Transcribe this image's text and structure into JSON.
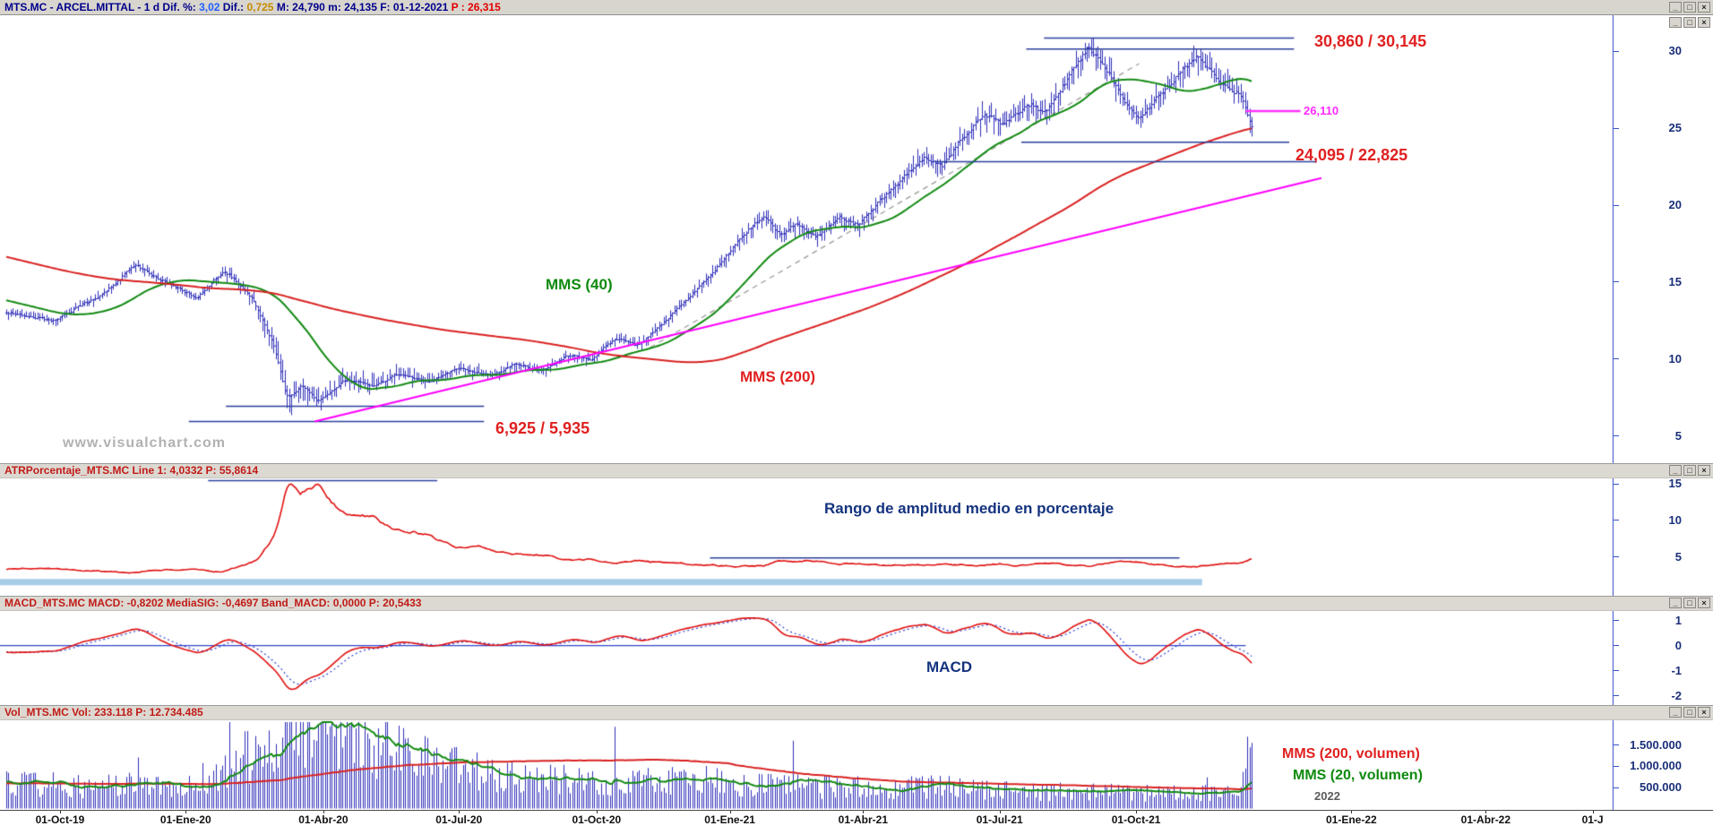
{
  "titlebar": {
    "segments": [
      {
        "text": "MTS.MC - ARCEL.MITTAL -  1 d  Dif. %: ",
        "color": "#00008b"
      },
      {
        "text": "3,02",
        "color": "#1e5eff"
      },
      {
        "text": "  Dif.: ",
        "color": "#00008b"
      },
      {
        "text": "0,725",
        "color": "#c78a00"
      },
      {
        "text": "  M: 24,790  m: 24,135  F: 01-12-2021  ",
        "color": "#00008b"
      },
      {
        "text": "P : 26,315",
        "color": "#e00000"
      }
    ],
    "window_controls": [
      {
        "name": "minimize",
        "glyph": "_"
      },
      {
        "name": "maximize",
        "glyph": "□"
      },
      {
        "name": "close",
        "glyph": "×"
      }
    ]
  },
  "chart_data": [
    {
      "type": "candlestick-ohlc",
      "symbol": "MTS.MC",
      "period": "1 d",
      "y_ticks": [
        30,
        25,
        20,
        15,
        10,
        5
      ],
      "y_range": [
        3.2,
        32.4
      ],
      "bar_color": "#2e2eb8",
      "series": {
        "bars": 560,
        "price_keypoints": [
          [
            0,
            13.0
          ],
          [
            0.036,
            12.5
          ],
          [
            0.077,
            14.3
          ],
          [
            0.102,
            16.1
          ],
          [
            0.126,
            15.0
          ],
          [
            0.152,
            14.0
          ],
          [
            0.174,
            15.8
          ],
          [
            0.196,
            13.9
          ],
          [
            0.214,
            10.8
          ],
          [
            0.224,
            7.3
          ],
          [
            0.236,
            8.3
          ],
          [
            0.249,
            7.2
          ],
          [
            0.271,
            8.7
          ],
          [
            0.293,
            8.2
          ],
          [
            0.312,
            9.0
          ],
          [
            0.339,
            8.5
          ],
          [
            0.36,
            9.4
          ],
          [
            0.388,
            8.9
          ],
          [
            0.407,
            9.7
          ],
          [
            0.429,
            9.2
          ],
          [
            0.449,
            10.3
          ],
          [
            0.47,
            9.9
          ],
          [
            0.479,
            10.9
          ],
          [
            0.492,
            11.4
          ],
          [
            0.505,
            10.8
          ],
          [
            0.525,
            12.3
          ],
          [
            0.545,
            13.9
          ],
          [
            0.566,
            15.7
          ],
          [
            0.579,
            17.0
          ],
          [
            0.593,
            18.3
          ],
          [
            0.607,
            19.4
          ],
          [
            0.62,
            18.0
          ],
          [
            0.634,
            18.9
          ],
          [
            0.648,
            17.9
          ],
          [
            0.668,
            19.3
          ],
          [
            0.682,
            18.7
          ],
          [
            0.696,
            19.9
          ],
          [
            0.716,
            21.6
          ],
          [
            0.737,
            23.1
          ],
          [
            0.751,
            22.5
          ],
          [
            0.764,
            24.3
          ],
          [
            0.785,
            25.9
          ],
          [
            0.798,
            25.1
          ],
          [
            0.819,
            26.7
          ],
          [
            0.833,
            25.9
          ],
          [
            0.853,
            28.6
          ],
          [
            0.867,
            30.3
          ],
          [
            0.88,
            29.1
          ],
          [
            0.894,
            27.0
          ],
          [
            0.908,
            25.7
          ],
          [
            0.921,
            26.9
          ],
          [
            0.942,
            28.7
          ],
          [
            0.956,
            29.8
          ],
          [
            0.969,
            28.3
          ],
          [
            0.983,
            27.1
          ],
          [
            0.99,
            27.4
          ],
          [
            1,
            24.6
          ]
        ],
        "atr_pct_keypoints": [
          [
            0,
            3.4
          ],
          [
            0.1,
            3.1
          ],
          [
            0.17,
            3.3
          ],
          [
            0.2,
            6
          ],
          [
            0.225,
            17.0
          ],
          [
            0.24,
            14
          ],
          [
            0.26,
            10.5
          ],
          [
            0.285,
            9.2
          ],
          [
            0.31,
            8.2
          ],
          [
            0.345,
            6.6
          ],
          [
            0.4,
            5.3
          ],
          [
            0.47,
            4.6
          ],
          [
            0.55,
            4.3
          ],
          [
            0.63,
            4.4
          ],
          [
            0.7,
            4.2
          ],
          [
            0.78,
            4.1
          ],
          [
            0.86,
            4.3
          ],
          [
            0.93,
            3.9
          ],
          [
            0.975,
            4.1
          ],
          [
            1,
            5.2
          ]
        ]
      },
      "overlays": [
        {
          "name": "MMS (40)",
          "type": "sma",
          "window": 40,
          "color": "#128a12"
        },
        {
          "name": "MMS (200)",
          "type": "sma",
          "window": 200,
          "color": "#d92121"
        }
      ],
      "lines": {
        "resistance": [
          {
            "price": 30.86,
            "x": [
              0.647,
              0.802
            ]
          },
          {
            "price": 30.145,
            "x": [
              0.636,
              0.802
            ]
          }
        ],
        "support": [
          {
            "price": 24.095,
            "x": [
              0.633,
              0.799
            ]
          },
          {
            "price": 22.825,
            "x": [
              0.579,
              0.816
            ]
          }
        ],
        "lows": [
          {
            "price": 6.925,
            "x": [
              0.14,
              0.3
            ]
          },
          {
            "price": 5.935,
            "x": [
              0.117,
              0.3
            ]
          }
        ],
        "trend_magenta": {
          "from": [
            0.195,
            5.94
          ],
          "to": [
            0.819,
            21.76
          ],
          "color": "#ff00ff"
        },
        "trend_dashed": {
          "from": [
            0.403,
            10.75
          ],
          "to": [
            0.706,
            29.2
          ],
          "color": "#9a9a9a"
        },
        "price_tag_line": {
          "price": 26.11,
          "x": [
            0.772,
            0.806
          ],
          "color": "#ff33ff"
        }
      },
      "labels": {
        "resistance": "30,860 / 30,145",
        "price_tag": "26,110",
        "support": "24,095 / 22,825",
        "low": "6,925 / 5,935",
        "mms40": "MMS (40)",
        "mms200": "MMS (200)",
        "watermark": "www.visualchart.com"
      }
    },
    {
      "type": "line",
      "header": "ATRPorcentaje_MTS.MC  Line 1: 4,0332  P: 55,8614",
      "y_ticks": [
        15,
        10,
        5
      ],
      "line_color": "#e01010",
      "annotation": "Rango de amplitud medio en porcentaje",
      "ref_lines": [
        {
          "value": 15.5,
          "x": [
            0.129,
            0.271
          ]
        },
        {
          "value": 4.9,
          "x": [
            0.44,
            0.731
          ]
        }
      ],
      "band": {
        "value": 1.6,
        "x": [
          0,
          0.745
        ],
        "color": "#a7cde8",
        "thickness": 7
      }
    },
    {
      "type": "line",
      "header": "MACD_MTS.MC  MACD: -0,8202  MediaSIG: -0,4697  Band_MACD: 0,0000  P: 20,5433",
      "y_ticks": [
        1,
        0,
        -1,
        -2
      ],
      "macd_color": "#e01010",
      "signal_color": "#2d3fd0",
      "zero_line": {
        "value": 0,
        "x": [
          0,
          0.772
        ],
        "color": "#3344cc"
      },
      "annotation": "MACD"
    },
    {
      "type": "bar",
      "header": "Vol_MTS.MC  Vol: 233.118  P: 12.734.485",
      "y_ticks": [
        {
          "v": 1500000,
          "label": "1.500.000"
        },
        {
          "v": 1000000,
          "label": "1.000.000"
        },
        {
          "v": 500000,
          "label": "500.000"
        }
      ],
      "bar_color": "#2e2eb8",
      "volume_keypoints": [
        [
          0,
          620
        ],
        [
          0.08,
          520
        ],
        [
          0.13,
          600
        ],
        [
          0.17,
          750
        ],
        [
          0.2,
          1400
        ],
        [
          0.225,
          2100
        ],
        [
          0.25,
          1700
        ],
        [
          0.285,
          1650
        ],
        [
          0.315,
          1350
        ],
        [
          0.35,
          1050
        ],
        [
          0.39,
          820
        ],
        [
          0.44,
          680
        ],
        [
          0.5,
          620
        ],
        [
          0.55,
          680
        ],
        [
          0.6,
          560
        ],
        [
          0.65,
          510
        ],
        [
          0.7,
          490
        ],
        [
          0.75,
          530
        ],
        [
          0.8,
          430
        ],
        [
          0.85,
          400
        ],
        [
          0.9,
          380
        ],
        [
          0.95,
          360
        ],
        [
          0.99,
          420
        ],
        [
          1,
          1550
        ]
      ],
      "overlays": [
        {
          "name": "MMS (200, volumen)",
          "window": 200,
          "color": "#d92121"
        },
        {
          "name": "MMS (20, volumen)",
          "window": 20,
          "color": "#128a12"
        }
      ],
      "labels": {
        "mms200": "MMS (200, volumen)",
        "mms20": "MMS (20, volumen)",
        "year": "2022"
      }
    }
  ],
  "x_axis": {
    "ticks": [
      {
        "label": "01-Oct-19",
        "f": 0.0372
      },
      {
        "label": "01-Ene-20",
        "f": 0.1151
      },
      {
        "label": "01-Abr-20",
        "f": 0.2004
      },
      {
        "label": "01-Jul-20",
        "f": 0.2844
      },
      {
        "label": "01-Oct-20",
        "f": 0.3697
      },
      {
        "label": "01-Ene-21",
        "f": 0.4523
      },
      {
        "label": "01-Abr-21",
        "f": 0.5349
      },
      {
        "label": "01-Jul-21",
        "f": 0.6195
      },
      {
        "label": "01-Oct-21",
        "f": 0.7041
      },
      {
        "label": "01-Ene-22",
        "f": 0.8375
      },
      {
        "label": "01-Abr-22",
        "f": 0.9208
      },
      {
        "label": "01-J",
        "f": 0.987
      }
    ]
  }
}
